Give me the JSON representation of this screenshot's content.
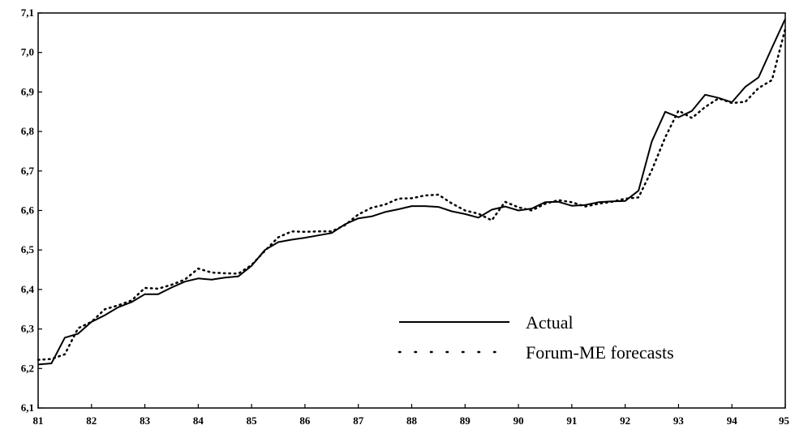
{
  "chart_data": {
    "type": "line",
    "title": "",
    "xlabel": "",
    "ylabel": "",
    "xlim": [
      81,
      95
    ],
    "ylim": [
      6.1,
      7.1
    ],
    "grid": false,
    "legend_position": "bottom-right",
    "x_tick_labels": [
      "81",
      "82",
      "83",
      "84",
      "85",
      "86",
      "87",
      "88",
      "89",
      "90",
      "91",
      "92",
      "93",
      "94",
      "95"
    ],
    "y_tick_labels": [
      "6,1",
      "6,2",
      "6,3",
      "6,4",
      "6,5",
      "6,6",
      "6,7",
      "6,8",
      "6,9",
      "7,0",
      "7,1"
    ],
    "series": [
      {
        "name": "Actual",
        "style": "solid",
        "color": "#000000",
        "points": [
          [
            81.0,
            6.21
          ],
          [
            81.25,
            6.213
          ],
          [
            81.5,
            6.278
          ],
          [
            81.75,
            6.288
          ],
          [
            82.0,
            6.318
          ],
          [
            82.25,
            6.335
          ],
          [
            82.5,
            6.355
          ],
          [
            82.75,
            6.368
          ],
          [
            83.0,
            6.388
          ],
          [
            83.25,
            6.388
          ],
          [
            83.5,
            6.405
          ],
          [
            83.75,
            6.42
          ],
          [
            84.0,
            6.428
          ],
          [
            84.25,
            6.425
          ],
          [
            84.5,
            6.43
          ],
          [
            84.75,
            6.433
          ],
          [
            85.0,
            6.46
          ],
          [
            85.25,
            6.5
          ],
          [
            85.5,
            6.52
          ],
          [
            85.75,
            6.526
          ],
          [
            86.0,
            6.531
          ],
          [
            86.25,
            6.537
          ],
          [
            86.5,
            6.543
          ],
          [
            86.75,
            6.565
          ],
          [
            87.0,
            6.58
          ],
          [
            87.25,
            6.585
          ],
          [
            87.5,
            6.596
          ],
          [
            87.75,
            6.603
          ],
          [
            88.0,
            6.611
          ],
          [
            88.25,
            6.611
          ],
          [
            88.5,
            6.609
          ],
          [
            88.75,
            6.598
          ],
          [
            89.0,
            6.591
          ],
          [
            89.25,
            6.582
          ],
          [
            89.5,
            6.602
          ],
          [
            89.75,
            6.61
          ],
          [
            90.0,
            6.6
          ],
          [
            90.25,
            6.605
          ],
          [
            90.5,
            6.621
          ],
          [
            90.75,
            6.622
          ],
          [
            91.0,
            6.612
          ],
          [
            91.25,
            6.614
          ],
          [
            91.5,
            6.621
          ],
          [
            91.75,
            6.623
          ],
          [
            92.0,
            6.624
          ],
          [
            92.25,
            6.65
          ],
          [
            92.5,
            6.775
          ],
          [
            92.75,
            6.85
          ],
          [
            93.0,
            6.836
          ],
          [
            93.25,
            6.852
          ],
          [
            93.5,
            6.893
          ],
          [
            93.75,
            6.885
          ],
          [
            94.0,
            6.874
          ],
          [
            94.25,
            6.913
          ],
          [
            94.5,
            6.937
          ],
          [
            94.75,
            7.012
          ],
          [
            95.0,
            7.085
          ]
        ]
      },
      {
        "name": "Forum-ME forecasts",
        "style": "dotted",
        "color": "#000000",
        "points": [
          [
            81.0,
            6.222
          ],
          [
            81.25,
            6.224
          ],
          [
            81.5,
            6.236
          ],
          [
            81.75,
            6.302
          ],
          [
            82.0,
            6.318
          ],
          [
            82.25,
            6.35
          ],
          [
            82.5,
            6.36
          ],
          [
            82.75,
            6.372
          ],
          [
            83.0,
            6.404
          ],
          [
            83.25,
            6.402
          ],
          [
            83.5,
            6.412
          ],
          [
            83.75,
            6.425
          ],
          [
            84.0,
            6.453
          ],
          [
            84.25,
            6.443
          ],
          [
            84.5,
            6.441
          ],
          [
            84.75,
            6.44
          ],
          [
            85.0,
            6.462
          ],
          [
            85.25,
            6.498
          ],
          [
            85.5,
            6.532
          ],
          [
            85.75,
            6.547
          ],
          [
            86.0,
            6.546
          ],
          [
            86.25,
            6.547
          ],
          [
            86.5,
            6.547
          ],
          [
            86.75,
            6.563
          ],
          [
            87.0,
            6.59
          ],
          [
            87.25,
            6.607
          ],
          [
            87.5,
            6.615
          ],
          [
            87.75,
            6.63
          ],
          [
            88.0,
            6.631
          ],
          [
            88.25,
            6.638
          ],
          [
            88.5,
            6.64
          ],
          [
            88.75,
            6.618
          ],
          [
            89.0,
            6.6
          ],
          [
            89.25,
            6.592
          ],
          [
            89.5,
            6.575
          ],
          [
            89.75,
            6.622
          ],
          [
            90.0,
            6.608
          ],
          [
            90.25,
            6.6
          ],
          [
            90.5,
            6.617
          ],
          [
            90.75,
            6.626
          ],
          [
            91.0,
            6.621
          ],
          [
            91.25,
            6.61
          ],
          [
            91.5,
            6.617
          ],
          [
            91.75,
            6.622
          ],
          [
            92.0,
            6.63
          ],
          [
            92.25,
            6.633
          ],
          [
            92.5,
            6.702
          ],
          [
            92.75,
            6.785
          ],
          [
            93.0,
            6.853
          ],
          [
            93.25,
            6.834
          ],
          [
            93.5,
            6.862
          ],
          [
            93.75,
            6.884
          ],
          [
            94.0,
            6.872
          ],
          [
            94.25,
            6.875
          ],
          [
            94.5,
            6.91
          ],
          [
            94.75,
            6.93
          ],
          [
            95.0,
            7.06
          ]
        ]
      }
    ]
  }
}
